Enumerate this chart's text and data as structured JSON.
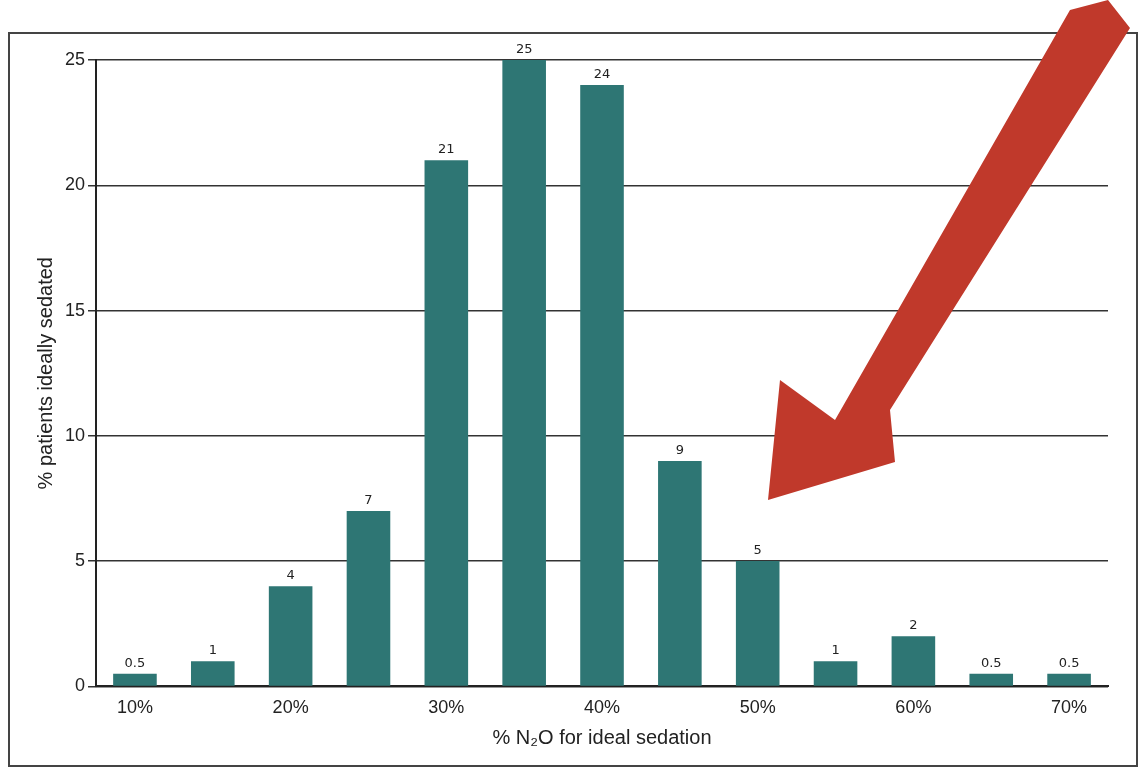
{
  "chart_data": {
    "type": "bar",
    "xlabel": "% N₂O for ideal sedation",
    "ylabel": "% patients ideally sedated",
    "categories": [
      "10%",
      null,
      "20%",
      null,
      "30%",
      null,
      "40%",
      null,
      "50%",
      null,
      "60%",
      null,
      "70%"
    ],
    "values": [
      0.5,
      1,
      4,
      7,
      21,
      25,
      24,
      9,
      5,
      1,
      2,
      0.5,
      0.5
    ],
    "value_labels": [
      "0.5",
      "1",
      "4",
      "7",
      "21",
      "25",
      "24",
      "9",
      "5",
      "1",
      "2",
      "0.5",
      "0.5"
    ],
    "color": "#2e7674",
    "ylim": [
      0,
      25
    ],
    "yticks": [
      0,
      5,
      10,
      15,
      20,
      25
    ],
    "grid": "y",
    "legend": false
  }
}
